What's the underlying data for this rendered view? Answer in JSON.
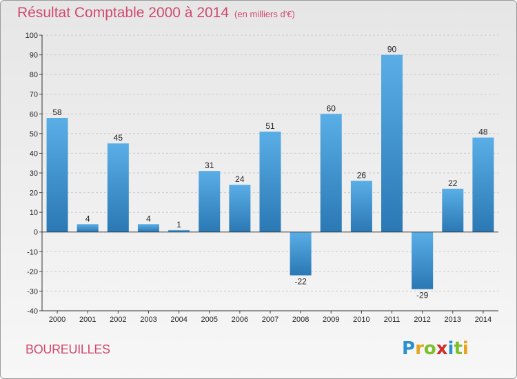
{
  "header": {
    "title": "Résultat Comptable 2000 à 2014",
    "subtitle": "(en milliers d'€)"
  },
  "footer": {
    "place": "BOUREUILLES",
    "logo": "Proxiti"
  },
  "colors": {
    "bar_top": "#5aaee6",
    "bar_bottom": "#2a78b4",
    "title": "#d14a6d"
  },
  "chart_data": {
    "type": "bar",
    "title": "Résultat Comptable 2000 à 2014",
    "subtitle": "(en milliers d'€)",
    "xlabel": "",
    "ylabel": "",
    "categories": [
      "2000",
      "2001",
      "2002",
      "2003",
      "2004",
      "2005",
      "2006",
      "2007",
      "2008",
      "2009",
      "2010",
      "2011",
      "2012",
      "2013",
      "2014"
    ],
    "values": [
      58,
      4,
      45,
      4,
      1,
      31,
      24,
      51,
      -22,
      60,
      26,
      90,
      -29,
      22,
      48
    ],
    "ylim": [
      -40,
      100
    ],
    "yticks": [
      -40,
      -30,
      -20,
      -10,
      0,
      10,
      20,
      30,
      40,
      50,
      60,
      70,
      80,
      90,
      100
    ],
    "grid": true
  }
}
